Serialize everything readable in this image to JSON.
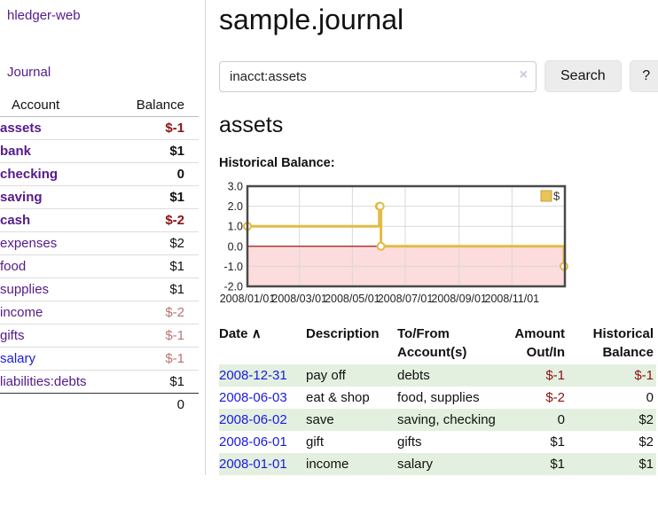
{
  "sidebar": {
    "app_title": "hledger-web",
    "journal_label": "Journal",
    "account_header": "Account",
    "balance_header": "Balance",
    "total": "0",
    "accounts": [
      {
        "name": "assets",
        "depth": 0,
        "bold": true,
        "balance": "$-1",
        "balance_style": "neg-strong",
        "link_color": "purple"
      },
      {
        "name": "bank",
        "depth": 1,
        "bold": true,
        "balance": "$1",
        "balance_style": "pos",
        "link_color": "purple"
      },
      {
        "name": "checking",
        "depth": 2,
        "bold": true,
        "balance": "0",
        "balance_style": "pos",
        "link_color": "purple"
      },
      {
        "name": "saving",
        "depth": 2,
        "bold": true,
        "balance": "$1",
        "balance_style": "pos",
        "link_color": "purple"
      },
      {
        "name": "cash",
        "depth": 1,
        "bold": true,
        "balance": "$-2",
        "balance_style": "neg-strong",
        "link_color": "purple"
      },
      {
        "name": "expenses",
        "depth": 0,
        "bold": false,
        "balance": "$2",
        "balance_style": "pos",
        "link_color": "purple"
      },
      {
        "name": "food",
        "depth": 1,
        "bold": false,
        "balance": "$1",
        "balance_style": "pos",
        "link_color": "purple"
      },
      {
        "name": "supplies",
        "depth": 1,
        "bold": false,
        "balance": "$1",
        "balance_style": "pos",
        "link_color": "purple"
      },
      {
        "name": "income",
        "depth": 0,
        "bold": false,
        "balance": "$-2",
        "balance_style": "neg-muted",
        "link_color": "purple"
      },
      {
        "name": "gifts",
        "depth": 1,
        "bold": false,
        "balance": "$-1",
        "balance_style": "neg-muted",
        "link_color": "purple"
      },
      {
        "name": "salary",
        "depth": 1,
        "bold": false,
        "balance": "$-1",
        "balance_style": "neg-muted",
        "link_color": "blue"
      },
      {
        "name": "liabilities:debts",
        "depth": 0,
        "bold": false,
        "balance": "$1",
        "balance_style": "pos",
        "link_color": "purple"
      }
    ]
  },
  "main": {
    "title": "sample.journal",
    "search": {
      "value": "inacct:assets",
      "clear_icon": "×",
      "button_label": "Search",
      "help_label": "?"
    },
    "account_heading": "assets",
    "chart_title": "Historical Balance:"
  },
  "register": {
    "headers": {
      "date": "Date",
      "sort_icon": "∧",
      "description": "Description",
      "accounts": "To/From Account(s)",
      "amount": "Amount Out/In",
      "balance": "Historical Balance"
    },
    "rows": [
      {
        "date": "2008-12-31",
        "description": "pay off",
        "accounts": "debts",
        "amount": "$-1",
        "amount_negative": true,
        "balance": "$-1",
        "balance_negative": true
      },
      {
        "date": "2008-06-03",
        "description": "eat & shop",
        "accounts": "food, supplies",
        "amount": "$-2",
        "amount_negative": true,
        "balance": "0",
        "balance_negative": false
      },
      {
        "date": "2008-06-02",
        "description": "save",
        "accounts": "saving, checking",
        "amount": "0",
        "amount_negative": false,
        "balance": "$2",
        "balance_negative": false
      },
      {
        "date": "2008-06-01",
        "description": "gift",
        "accounts": "gifts",
        "amount": "$1",
        "amount_negative": false,
        "balance": "$2",
        "balance_negative": false
      },
      {
        "date": "2008-01-01",
        "description": "income",
        "accounts": "salary",
        "amount": "$1",
        "amount_negative": false,
        "balance": "$1",
        "balance_negative": false
      }
    ]
  },
  "chart_data": {
    "type": "line",
    "step": true,
    "title": "Historical Balance:",
    "series": [
      {
        "name": "$",
        "color": "#e3bb45",
        "points": [
          [
            "2008-01-01",
            1
          ],
          [
            "2008-06-01",
            2
          ],
          [
            "2008-06-02",
            2
          ],
          [
            "2008-06-03",
            0
          ],
          [
            "2008-12-31",
            -1
          ]
        ]
      }
    ],
    "x_domain": [
      "2008-01-01",
      "2009-01-01"
    ],
    "x_ticks": [
      "2008/01/01",
      "2008/03/01",
      "2008/05/01",
      "2008/07/01",
      "2008/09/01",
      "2008/11/01"
    ],
    "y_ticks": [
      "3.0",
      "2.0",
      "1.0",
      "0.0",
      "-1.0",
      "-2.0"
    ],
    "ylim": [
      -2,
      3
    ],
    "grid": true,
    "legend": {
      "label": "$",
      "position": "top-right"
    },
    "colors": {
      "line": "#e3bb45",
      "marker_fill": "#ffffff",
      "legend_fill": "#e7c455",
      "legend_border": "#c9a23d",
      "negative_region": "#fcdcdc",
      "zero_line": "#990000",
      "gridline": "#d9d9d9",
      "frame": "#4a4a4a",
      "tick_text": "#222222"
    }
  }
}
